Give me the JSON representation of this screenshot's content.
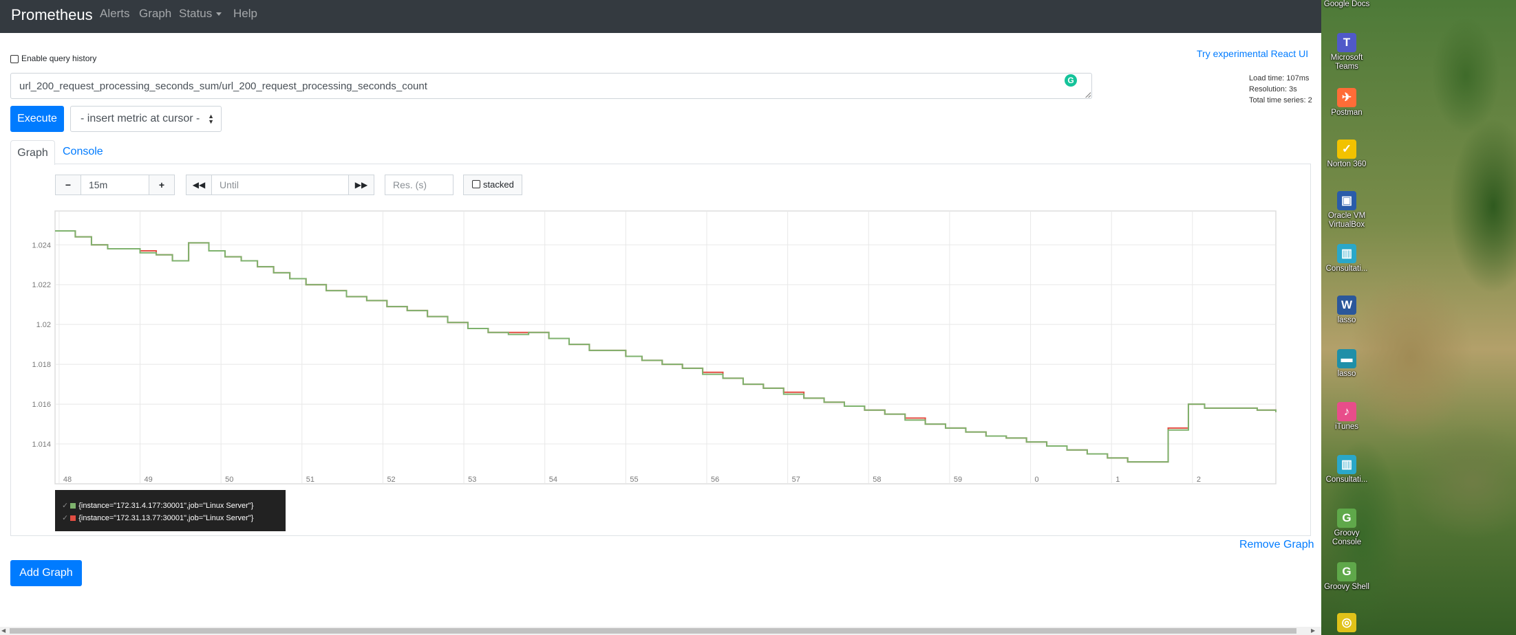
{
  "navbar": {
    "brand": "Prometheus",
    "items": [
      "Alerts",
      "Graph",
      "Status",
      "Help"
    ]
  },
  "query": {
    "history_label": "Enable query history",
    "react_link": "Try experimental React UI",
    "expression": "url_200_request_processing_seconds_sum/url_200_request_processing_seconds_count",
    "load_time": "Load time: 107ms",
    "resolution": "Resolution: 3s",
    "total_series": "Total time series: 2",
    "execute_label": "Execute",
    "insert_metric_label": "- insert metric at cursor -"
  },
  "tabs": {
    "graph": "Graph",
    "console": "Console"
  },
  "graph_controls": {
    "range": "15m",
    "until_placeholder": "Until",
    "res_placeholder": "Res. (s)",
    "stacked_label": "stacked"
  },
  "chart_data": {
    "type": "line",
    "title": "",
    "xlabel": "",
    "ylabel": "",
    "x_ticks": [
      "48",
      "49",
      "50",
      "51",
      "52",
      "53",
      "54",
      "55",
      "56",
      "57",
      "58",
      "59",
      "0",
      "1",
      "2"
    ],
    "y_ticks": [
      "1.014",
      "1.016",
      "1.018",
      "1.02",
      "1.022",
      "1.024"
    ],
    "ylim": [
      1.012,
      1.0257
    ],
    "x_unit": "minute",
    "xlim": [
      47.95,
      63.03
    ],
    "grid": true,
    "series": [
      {
        "name": "{instance=\"172.31.4.177:30001\",job=\"Linux Server\"}",
        "color": "#7eb26d",
        "x": [
          47.95,
          48.2,
          48.4,
          48.6,
          48.8,
          49.0,
          49.2,
          49.4,
          49.6,
          49.85,
          50.05,
          50.25,
          50.45,
          50.65,
          50.85,
          51.05,
          51.3,
          51.55,
          51.8,
          52.05,
          52.3,
          52.55,
          52.8,
          53.05,
          53.3,
          53.55,
          53.8,
          54.05,
          54.3,
          54.55,
          54.75,
          55.0,
          55.2,
          55.45,
          55.7,
          55.95,
          56.2,
          56.45,
          56.7,
          56.95,
          57.2,
          57.45,
          57.7,
          57.95,
          58.2,
          58.45,
          58.7,
          58.95,
          59.2,
          59.45,
          59.7,
          59.95,
          60.2,
          60.45,
          60.7,
          60.95,
          61.2,
          61.45,
          61.7,
          61.95,
          62.15,
          62.35,
          62.55,
          62.8,
          63.03
        ],
        "y": [
          1.0247,
          1.0244,
          1.024,
          1.0238,
          1.0238,
          1.0236,
          1.0235,
          1.0232,
          1.0241,
          1.0237,
          1.0234,
          1.0232,
          1.0229,
          1.0226,
          1.0223,
          1.022,
          1.0217,
          1.0214,
          1.0212,
          1.0209,
          1.0207,
          1.0204,
          1.0201,
          1.0198,
          1.0196,
          1.0195,
          1.0196,
          1.0193,
          1.019,
          1.0187,
          1.0187,
          1.0184,
          1.0182,
          1.018,
          1.0178,
          1.0175,
          1.0173,
          1.017,
          1.0168,
          1.0165,
          1.0163,
          1.0161,
          1.0159,
          1.0157,
          1.0155,
          1.0152,
          1.015,
          1.0148,
          1.0146,
          1.0144,
          1.0143,
          1.0141,
          1.0139,
          1.0137,
          1.0135,
          1.0133,
          1.0131,
          1.0131,
          1.0147,
          1.016,
          1.0158,
          1.0158,
          1.0158,
          1.0157,
          1.0156
        ]
      },
      {
        "name": "{instance=\"172.31.13.77:30001\",job=\"Linux Server\"}",
        "color": "#e24d42",
        "x": [
          47.95,
          48.2,
          48.4,
          48.6,
          48.8,
          49.0,
          49.2,
          49.4,
          49.6,
          49.85,
          50.05,
          50.25,
          50.45,
          50.65,
          50.85,
          51.05,
          51.3,
          51.55,
          51.8,
          52.05,
          52.3,
          52.55,
          52.8,
          53.05,
          53.3,
          53.55,
          53.8,
          54.05,
          54.3,
          54.55,
          54.75,
          55.0,
          55.2,
          55.45,
          55.7,
          55.95,
          56.2,
          56.45,
          56.7,
          56.95,
          57.2,
          57.45,
          57.7,
          57.95,
          58.2,
          58.45,
          58.7,
          58.95,
          59.2,
          59.45,
          59.7,
          59.95,
          60.2,
          60.45,
          60.7,
          60.95,
          61.2,
          61.45,
          61.7,
          61.95,
          62.15,
          62.35,
          62.55,
          62.8,
          63.03
        ],
        "y": [
          1.0247,
          1.0244,
          1.024,
          1.0238,
          1.0238,
          1.0237,
          1.0235,
          1.0232,
          1.0241,
          1.0237,
          1.0234,
          1.0232,
          1.0229,
          1.0226,
          1.0223,
          1.022,
          1.0217,
          1.0214,
          1.0212,
          1.0209,
          1.0207,
          1.0204,
          1.0201,
          1.0198,
          1.0196,
          1.0196,
          1.0196,
          1.0193,
          1.019,
          1.0187,
          1.0187,
          1.0184,
          1.0182,
          1.018,
          1.0178,
          1.0176,
          1.0173,
          1.017,
          1.0168,
          1.0166,
          1.0163,
          1.0161,
          1.0159,
          1.0157,
          1.0155,
          1.0153,
          1.015,
          1.0148,
          1.0146,
          1.0144,
          1.0143,
          1.0141,
          1.0139,
          1.0137,
          1.0135,
          1.0133,
          1.0131,
          1.0131,
          1.0148,
          1.016,
          1.0158,
          1.0158,
          1.0158,
          1.0157,
          1.0156
        ]
      }
    ]
  },
  "remove_graph": "Remove Graph",
  "add_graph": "Add Graph",
  "desktop": {
    "icons": [
      {
        "label": "Google Docs",
        "icon": "google-docs-icon",
        "color": "#4285f4",
        "glyph": ""
      },
      {
        "label": "Microsoft Teams",
        "icon": "teams-icon",
        "color": "#5059c9",
        "glyph": "T"
      },
      {
        "label": "Postman",
        "icon": "postman-icon",
        "color": "#ff6c37",
        "glyph": "✈"
      },
      {
        "label": "Norton 360",
        "icon": "norton-icon",
        "color": "#f2c200",
        "glyph": "✓"
      },
      {
        "label": "Oracle VM VirtualBox",
        "icon": "virtualbox-icon",
        "color": "#2a5caa",
        "glyph": "▣"
      },
      {
        "label": "Consultati...",
        "icon": "book-icon",
        "color": "#2aa7c9",
        "glyph": "▥"
      },
      {
        "label": "lasso",
        "icon": "word-icon",
        "color": "#2b579a",
        "glyph": "W"
      },
      {
        "label": "lasso",
        "icon": "shortcut-icon",
        "color": "#1f8fa8",
        "glyph": "▬"
      },
      {
        "label": "iTunes",
        "icon": "itunes-icon",
        "color": "#e84d8a",
        "glyph": "♪"
      },
      {
        "label": "Consultati...",
        "icon": "book-icon",
        "color": "#2aa7c9",
        "glyph": "▥"
      },
      {
        "label": "Groovy Console",
        "icon": "groovy-icon",
        "color": "#5fa84a",
        "glyph": "G"
      },
      {
        "label": "Groovy Shell",
        "icon": "groovy-icon",
        "color": "#5fa84a",
        "glyph": "G"
      },
      {
        "label": "",
        "icon": "target-icon",
        "color": "#e0c21a",
        "glyph": "◎"
      }
    ]
  }
}
